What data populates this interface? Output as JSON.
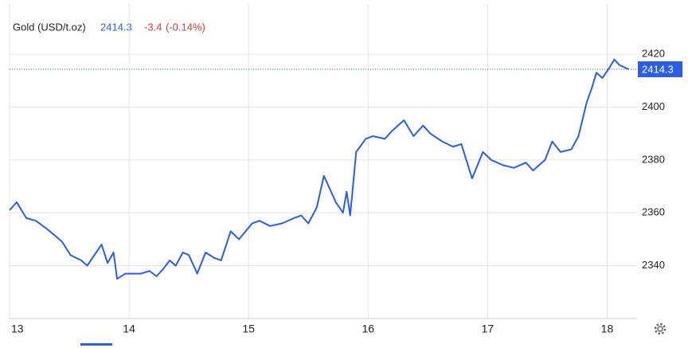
{
  "chart_data": {
    "type": "line",
    "title": "Gold (USD/t.oz)",
    "last_price": 2414.3,
    "change": -3.4,
    "change_pct": "(-0.14%)",
    "x": [
      13.0,
      13.06,
      13.14,
      13.22,
      13.31,
      13.39,
      13.44,
      13.51,
      13.6,
      13.65,
      13.74,
      13.77,
      13.82,
      13.87,
      13.9,
      13.97,
      14.04,
      14.1,
      14.17,
      14.23,
      14.29,
      14.34,
      14.39,
      14.45,
      14.5,
      14.57,
      14.64,
      14.71,
      14.77,
      14.85,
      14.92,
      15.03,
      15.09,
      15.18,
      15.28,
      15.38,
      15.44,
      15.5,
      15.57,
      15.63,
      15.73,
      15.79,
      15.82,
      15.85,
      15.9,
      15.98,
      16.04,
      16.14,
      16.2,
      16.3,
      16.38,
      16.46,
      16.52,
      16.62,
      16.71,
      16.78,
      16.87,
      16.96,
      17.03,
      17.13,
      17.22,
      17.32,
      17.38,
      17.48,
      17.54,
      17.61,
      17.7,
      17.76,
      17.83,
      17.87,
      17.91,
      17.96,
      18.02,
      18.06,
      18.1,
      18.18
    ],
    "series": [
      {
        "color": "#2a5ee8",
        "values": [
          2361,
          2364,
          2358,
          2357,
          2354,
          2351,
          2349,
          2344,
          2342,
          2340,
          2346,
          2348,
          2341,
          2345,
          2335,
          2337,
          2337,
          2337,
          2338,
          2336,
          2339,
          2342,
          2340,
          2345,
          2344,
          2337,
          2345,
          2343,
          2342,
          2353,
          2350,
          2356,
          2357,
          2355,
          2356,
          2358,
          2359,
          2356,
          2362,
          2374,
          2364,
          2360,
          2368,
          2359,
          2383,
          2388,
          2389,
          2388,
          2391,
          2395,
          2389,
          2393,
          2390,
          2387,
          2385,
          2386,
          2373,
          2383,
          2380,
          2378,
          2377,
          2379,
          2376,
          2380,
          2387,
          2383,
          2384,
          2389,
          2402,
          2407,
          2413,
          2411,
          2415,
          2418,
          2416,
          2414.3
        ]
      }
    ],
    "xlim": [
      13,
      18.25
    ],
    "xticks": [
      13,
      14,
      15,
      16,
      17,
      18
    ],
    "ylim": [
      2320,
      2439
    ],
    "yticks": [
      2340,
      2360,
      2380,
      2400,
      2420
    ],
    "grid": true
  }
}
